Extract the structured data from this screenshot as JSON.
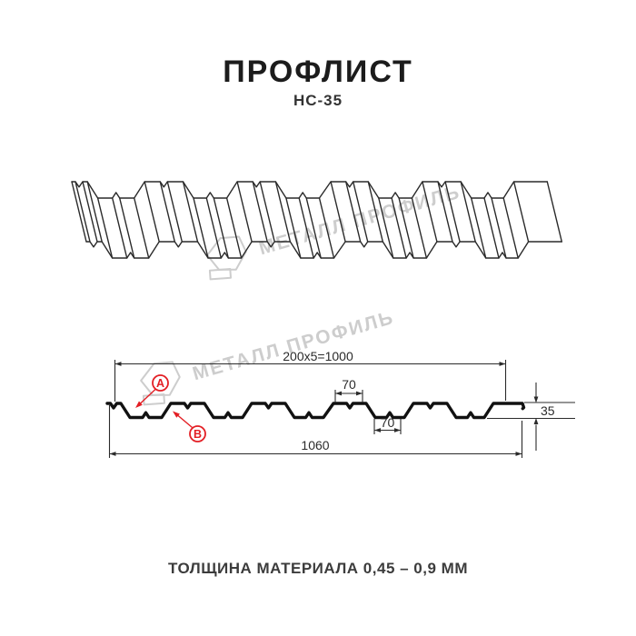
{
  "header": {
    "title": "ПРОФЛИСТ",
    "subtitle": "НС-35"
  },
  "watermark": {
    "text": "МЕТАЛЛ ПРОФИЛЬ"
  },
  "cross_section": {
    "dim_width_top": "200x5=1000",
    "dim_crest_top": "70",
    "dim_valley_bottom": "70",
    "dim_total_width": "1060",
    "dim_height": "35",
    "label_a": "A",
    "label_b": "B"
  },
  "footer": {
    "thickness_note": "ТОЛЩИНА МАТЕРИАЛА 0,45 – 0,9 ММ"
  },
  "colors": {
    "accent_red": "#e31e24",
    "line": "#2a2a2a",
    "watermark": "#cdcdcd",
    "background": "#ffffff"
  }
}
